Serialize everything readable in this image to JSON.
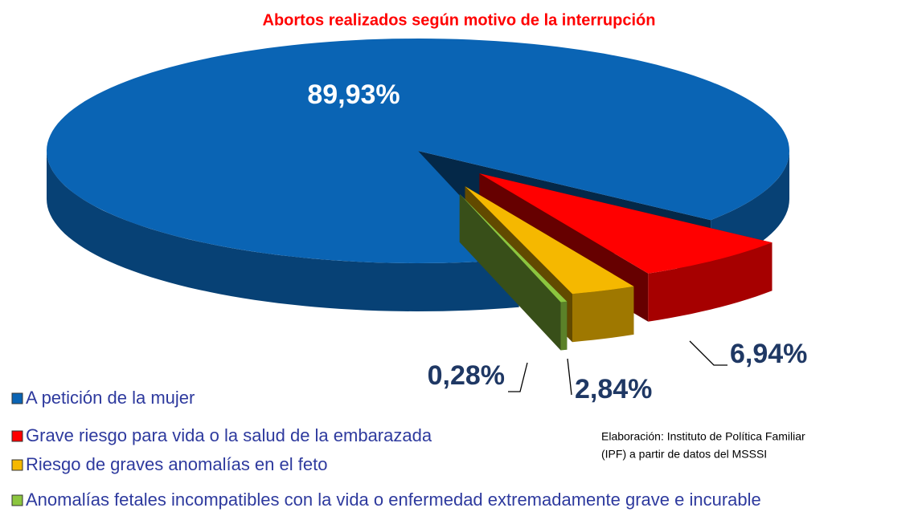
{
  "chart_data": {
    "type": "pie",
    "title": "Abortos realizados según motivo de la interrupción",
    "categories": [
      "A petición de la mujer",
      "Grave riesgo para vida o la salud de la embarazada",
      "Riesgo de graves anomalías en el feto",
      "Anomalías fetales incompatibles con la vida o enfermedad extremadamente grave e incurable"
    ],
    "values": [
      89.93,
      6.94,
      2.84,
      0.28
    ],
    "value_labels": [
      "89,93%",
      "6,94%",
      "2,84%",
      "0,28%"
    ],
    "colors": [
      "#0a64b4",
      "#ff0000",
      "#f5b800",
      "#8cc63f"
    ],
    "note": [
      "Elaboración: Instituto de Política Familiar",
      "(IPF) a partir de datos del MSSSI"
    ]
  }
}
